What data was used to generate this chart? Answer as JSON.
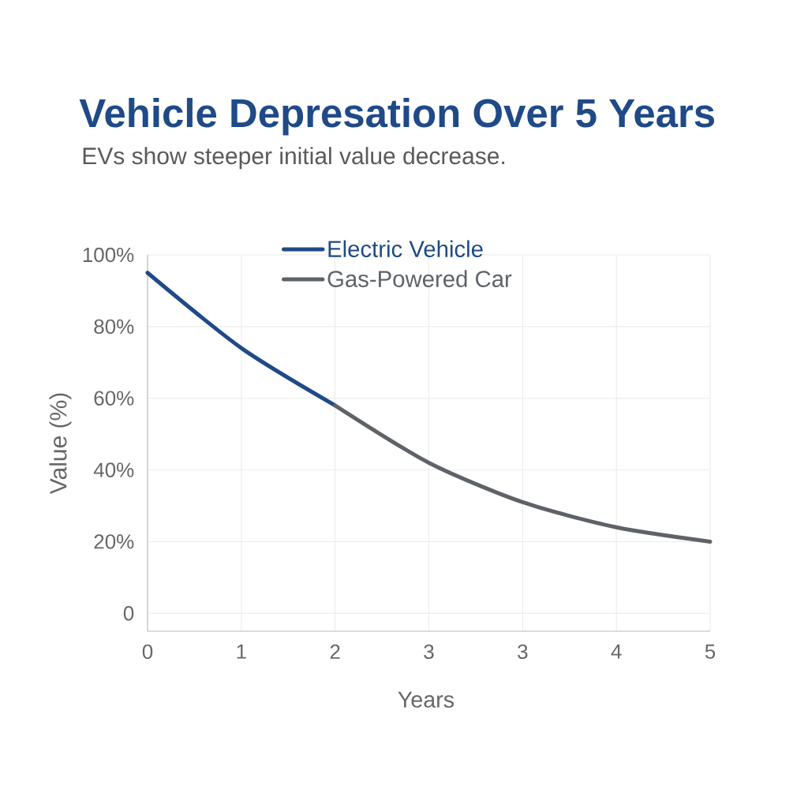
{
  "chart_data": {
    "type": "line",
    "title": "Vehicle Depresation Over 5 Years",
    "subtitle": "EVs show steeper initial value decrease.",
    "xlabel": "Years",
    "ylabel": "Value (%)",
    "categories": [
      "0",
      "1",
      "2",
      "3",
      "3",
      "4",
      "5"
    ],
    "series": [
      {
        "name": "Electric Vehicle",
        "color": "#1f4a87",
        "values": [
          95,
          74,
          58,
          null,
          null,
          null,
          null
        ]
      },
      {
        "name": "Gas-Powered Car",
        "color": "#5f6368",
        "values": [
          null,
          null,
          58,
          42,
          31,
          24,
          20
        ]
      }
    ],
    "ylim": [
      -5,
      100
    ],
    "yticks": [
      0,
      {
        "value": 20,
        "label": "20%"
      },
      {
        "value": 40,
        "label": "40%"
      },
      {
        "value": 60,
        "label": "60%"
      },
      {
        "value": 80,
        "label": "80%"
      },
      {
        "value": 100,
        "label": "100%"
      }
    ],
    "grid": true,
    "legend": "top",
    "line_style": "solid"
  }
}
